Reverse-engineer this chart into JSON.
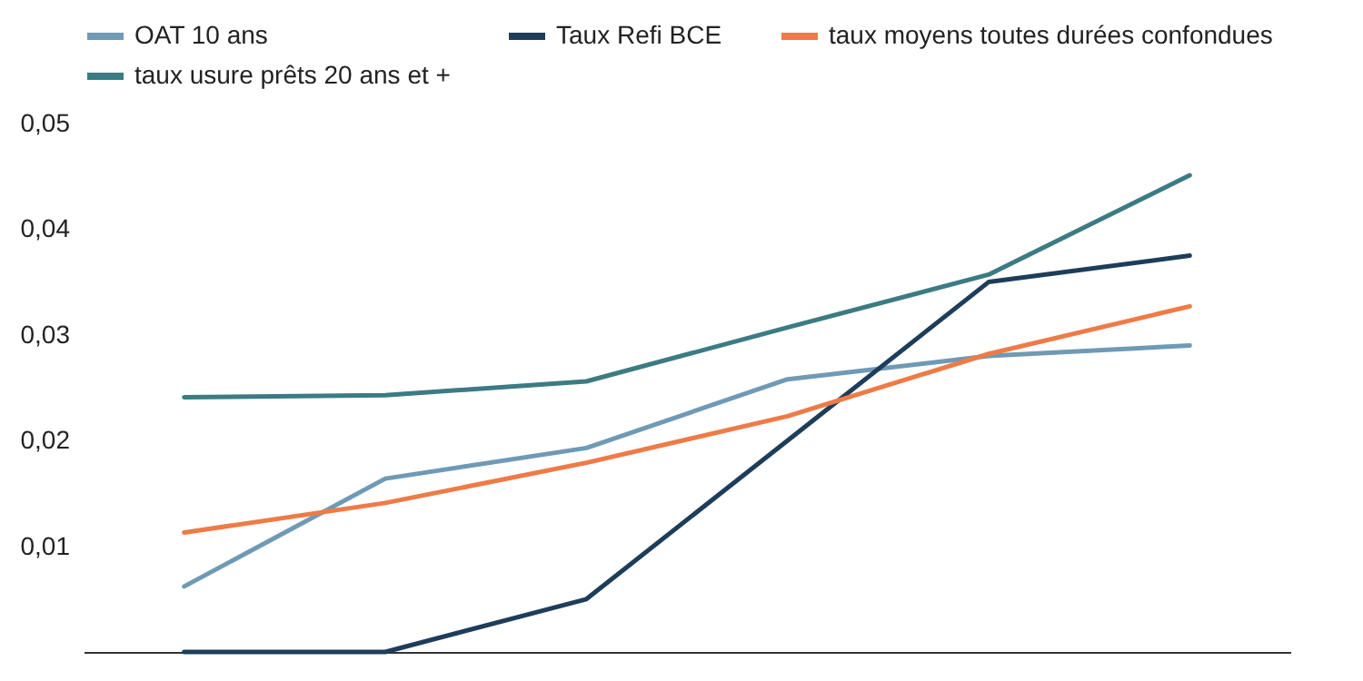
{
  "chart_data": {
    "type": "line",
    "categories": [
      null,
      null,
      null,
      null,
      null,
      null
    ],
    "series": [
      {
        "name": "OAT 10 ans",
        "color": "#6f9ab5",
        "values": [
          0.0062,
          0.0164,
          0.0193,
          0.0258,
          0.028,
          0.029
        ]
      },
      {
        "name": "Taux Refi BCE",
        "color": "#1d3d5a",
        "values": [
          0,
          0,
          0.005,
          0.02,
          0.035,
          0.0375
        ]
      },
      {
        "name": "taux moyens toutes durées confondues",
        "color": "#ee7b47",
        "values": [
          0.0113,
          0.0141,
          0.0179,
          0.0223,
          0.0282,
          0.0327
        ]
      },
      {
        "name": "taux usure prêts 20 ans et +",
        "color": "#3c7b84",
        "values": [
          0.0241,
          0.0243,
          0.0256,
          0.0307,
          0.0357,
          0.0451
        ]
      }
    ],
    "ylim": [
      0,
      0.05
    ],
    "yticks": [
      {
        "value": 0.01,
        "label": "0,01"
      },
      {
        "value": 0.02,
        "label": "0,02"
      },
      {
        "value": 0.03,
        "label": "0,03"
      },
      {
        "value": 0.04,
        "label": "0,04"
      },
      {
        "value": 0.05,
        "label": "0,05"
      }
    ],
    "grid": false,
    "legend": "top",
    "tick_labels": "y",
    "marker": "none",
    "line_style": "solid"
  }
}
